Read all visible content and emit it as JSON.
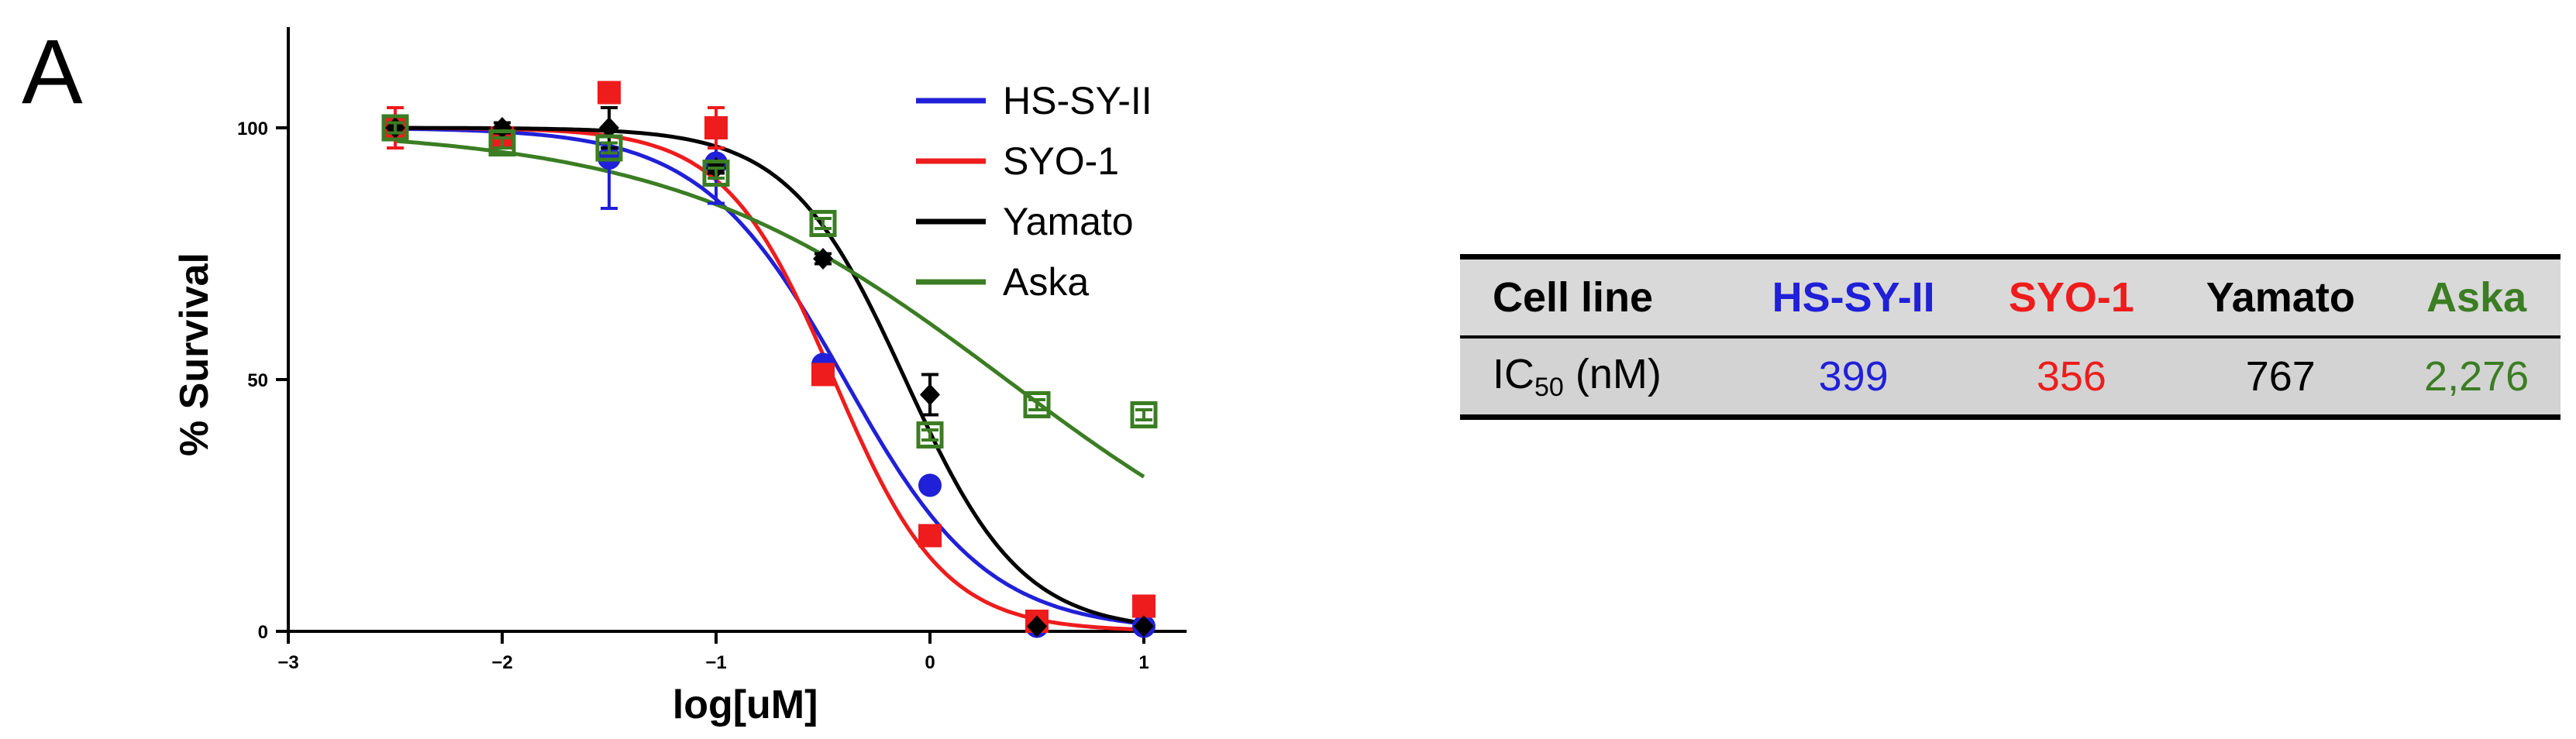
{
  "panel_label": "A",
  "chart_data": {
    "type": "scatter",
    "xlabel": "log[uM]",
    "ylabel": "% Survival",
    "xlim": [
      -3,
      1.2
    ],
    "ylim": [
      0,
      120
    ],
    "x_ticks": [
      -3,
      -2,
      -1,
      0,
      1
    ],
    "x_tick_labels": [
      "−3",
      "−2",
      "−1",
      "0",
      "1"
    ],
    "y_ticks": [
      0,
      50,
      100
    ],
    "y_tick_labels": [
      "0",
      "50",
      "100"
    ],
    "grid": false,
    "legend_position": "top-right",
    "series": [
      {
        "name": "HS-SY-II",
        "color": "#2020d8",
        "marker": "circle",
        "x": [
          -2.5,
          -2,
          -1.5,
          -1,
          -0.5,
          0,
          0.5,
          1
        ],
        "y": [
          100,
          98,
          94,
          93,
          53,
          29,
          1,
          1
        ],
        "err": [
          1,
          2,
          10,
          8,
          1,
          1,
          0.5,
          0.5
        ],
        "fit": {
          "top": 100,
          "bottom": 0,
          "logIC50": -0.399,
          "hill": 1.3
        }
      },
      {
        "name": "SYO-1",
        "color": "#ee1c1c",
        "marker": "square",
        "x": [
          -2.5,
          -2,
          -1.5,
          -1,
          -0.5,
          0,
          0.5,
          1
        ],
        "y": [
          100,
          98,
          107,
          100,
          51,
          19,
          2,
          5
        ],
        "err": [
          4,
          2,
          1,
          4,
          1,
          1,
          0.5,
          0.5
        ],
        "fit": {
          "top": 100,
          "bottom": 0,
          "logIC50": -0.449,
          "hill": 1.7
        }
      },
      {
        "name": "Yamato",
        "color": "#000000",
        "marker": "diamond",
        "x": [
          -2.5,
          -2,
          -1.5,
          -1,
          -0.5,
          0,
          0.5,
          1
        ],
        "y": [
          100,
          100,
          100,
          92,
          74,
          47,
          1,
          1
        ],
        "err": [
          1,
          1,
          4,
          1,
          1,
          4,
          0.5,
          0.5
        ],
        "fit": {
          "top": 100,
          "bottom": 0,
          "logIC50": -0.115,
          "hill": 1.6
        }
      },
      {
        "name": "Aska",
        "color": "#3b7d23",
        "marker": "open-square",
        "x": [
          -2.5,
          -2,
          -1.5,
          -1,
          -0.5,
          0,
          0.5,
          1
        ],
        "y": [
          100,
          97,
          96,
          91,
          81,
          39,
          45,
          43
        ],
        "err": [
          1,
          1,
          1,
          1,
          1,
          1,
          1,
          1
        ],
        "fit": {
          "top": 100,
          "bottom": 0,
          "logIC50": 0.357,
          "hill": 0.55
        }
      }
    ]
  },
  "table": {
    "header_label": "Cell line",
    "row_label_main": "IC",
    "row_label_sub": "50",
    "row_label_unit": " (nM)",
    "columns": [
      {
        "name": "HS-SY-II",
        "value": "399",
        "color": "#2020d8"
      },
      {
        "name": "SYO-1",
        "value": "356",
        "color": "#ee1c1c"
      },
      {
        "name": "Yamato",
        "value": "767",
        "color": "#000000"
      },
      {
        "name": "Aska",
        "value": "2,276",
        "color": "#3b7d23"
      }
    ]
  }
}
